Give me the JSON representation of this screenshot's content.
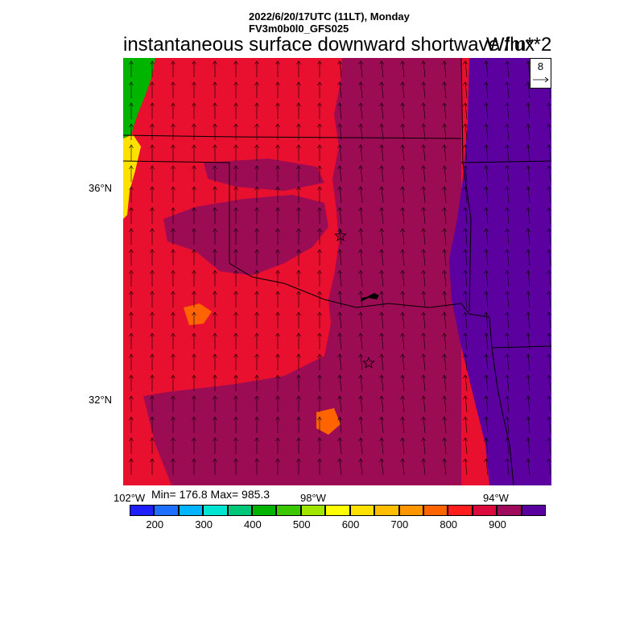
{
  "header": {
    "date_line": "2022/6/20/17UTC (11LT), Monday",
    "model_line": "FV3m0b0l0_GFS025",
    "title": "instantaneous surface downward shortwave flux",
    "units": "W/m**2"
  },
  "vector_legend": {
    "reference_value": "8"
  },
  "axes": {
    "lat_labels": [
      "36°N",
      "32°N"
    ],
    "lon_labels": [
      "102°W",
      "98°W",
      "94°W"
    ]
  },
  "stats": {
    "text": "Min= 176.8 Max= 985.3",
    "min": 176.8,
    "max": 985.3
  },
  "colorbar": {
    "labels": [
      "200",
      "300",
      "400",
      "500",
      "600",
      "700",
      "800",
      "900"
    ],
    "colors": [
      "#1e1eff",
      "#1e6eff",
      "#00b4ff",
      "#00e6d2",
      "#00c878",
      "#00b400",
      "#3cc800",
      "#a0e600",
      "#ffff00",
      "#ffe100",
      "#ffbe00",
      "#ff9600",
      "#ff6400",
      "#ff1e1e",
      "#dc0a3c",
      "#a00a5a",
      "#5a00a0"
    ]
  },
  "map": {
    "colors": {
      "red": "#e8102e",
      "magenta": "#9c0c55",
      "purple": "#5c00a0",
      "border": "#000000"
    },
    "station_markers": 2
  }
}
